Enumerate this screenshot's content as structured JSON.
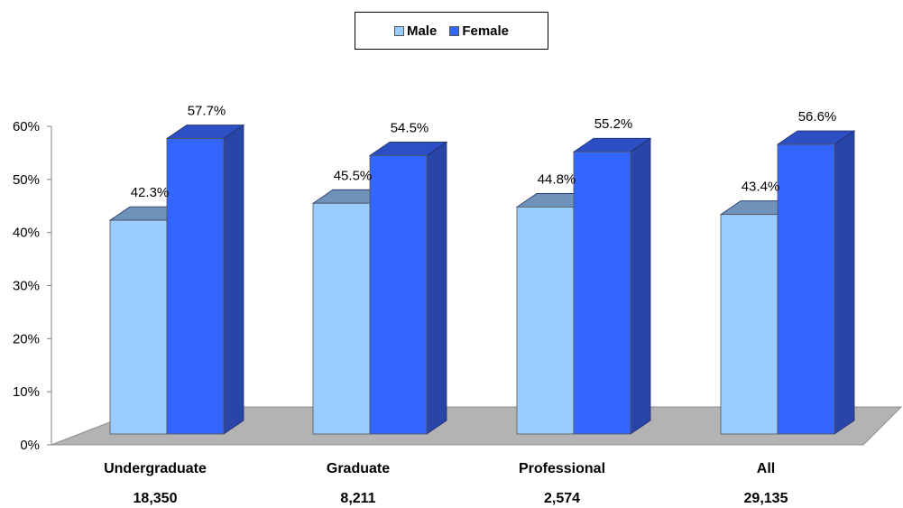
{
  "chart_data": {
    "type": "bar",
    "title": "",
    "xlabel": "",
    "ylabel": "",
    "categories": [
      "Undergraduate",
      "Graduate",
      "Professional",
      "All"
    ],
    "category_counts": [
      "18,350",
      "8,211",
      "2,574",
      "29,135"
    ],
    "series": [
      {
        "name": "Male",
        "values": [
          42.3,
          45.5,
          44.8,
          43.4
        ],
        "labels": [
          "42.3%",
          "45.5%",
          "44.8%",
          "43.4%"
        ],
        "color": "#99ccff"
      },
      {
        "name": "Female",
        "values": [
          57.7,
          54.5,
          55.2,
          56.6
        ],
        "labels": [
          "57.7%",
          "54.5%",
          "55.2%",
          "56.6%"
        ],
        "color": "#3366ff"
      }
    ],
    "ylim": [
      0,
      60
    ],
    "yticks": [
      "0%",
      "10%",
      "20%",
      "30%",
      "40%",
      "50%",
      "60%"
    ],
    "legend_position": "top-center",
    "grid": false,
    "style": "3d-bar"
  }
}
